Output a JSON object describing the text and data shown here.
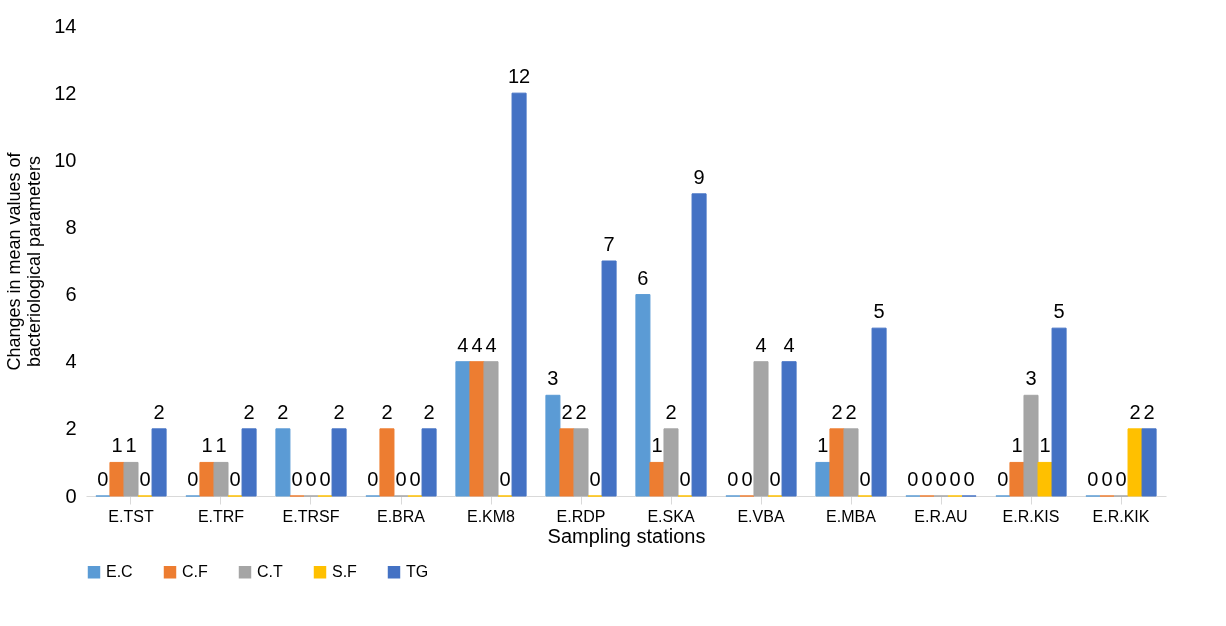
{
  "chart_data": {
    "type": "bar",
    "xlabel": "Sampling stations",
    "ylabel": "Changes in mean values of bacteriological parameters",
    "categories": [
      "E.TST",
      "E.TRF",
      "E.TRSF",
      "E.BRA",
      "E.KM8",
      "E.RDP",
      "E.SKA",
      "E.VBA",
      "E.MBA",
      "E.R.AU",
      "E.R.KIS",
      "E.R.KIK"
    ],
    "series": [
      {
        "name": "E.C",
        "color": "#5b9bd5",
        "values": [
          0,
          0,
          2,
          0,
          4,
          3,
          6,
          0,
          1,
          0,
          0,
          0
        ]
      },
      {
        "name": "C.F",
        "color": "#ed7d31",
        "values": [
          1,
          1,
          0,
          2,
          4,
          2,
          1,
          0,
          2,
          0,
          1,
          0
        ]
      },
      {
        "name": "C.T",
        "color": "#a5a5a5",
        "values": [
          1,
          1,
          0,
          0,
          4,
          2,
          2,
          4,
          2,
          0,
          3,
          0
        ]
      },
      {
        "name": "S.F",
        "color": "#ffc000",
        "values": [
          0,
          0,
          0,
          0,
          0,
          0,
          0,
          0,
          0,
          0,
          1,
          2
        ]
      },
      {
        "name": "TG",
        "color": "#4472c4",
        "values": [
          2,
          2,
          2,
          2,
          12,
          7,
          9,
          4,
          5,
          0,
          5,
          2
        ]
      }
    ],
    "ylim": [
      0,
      14
    ],
    "yticks": [
      0,
      2,
      4,
      6,
      8,
      10,
      12,
      14
    ],
    "data_labels": true,
    "legend": "bottom"
  }
}
